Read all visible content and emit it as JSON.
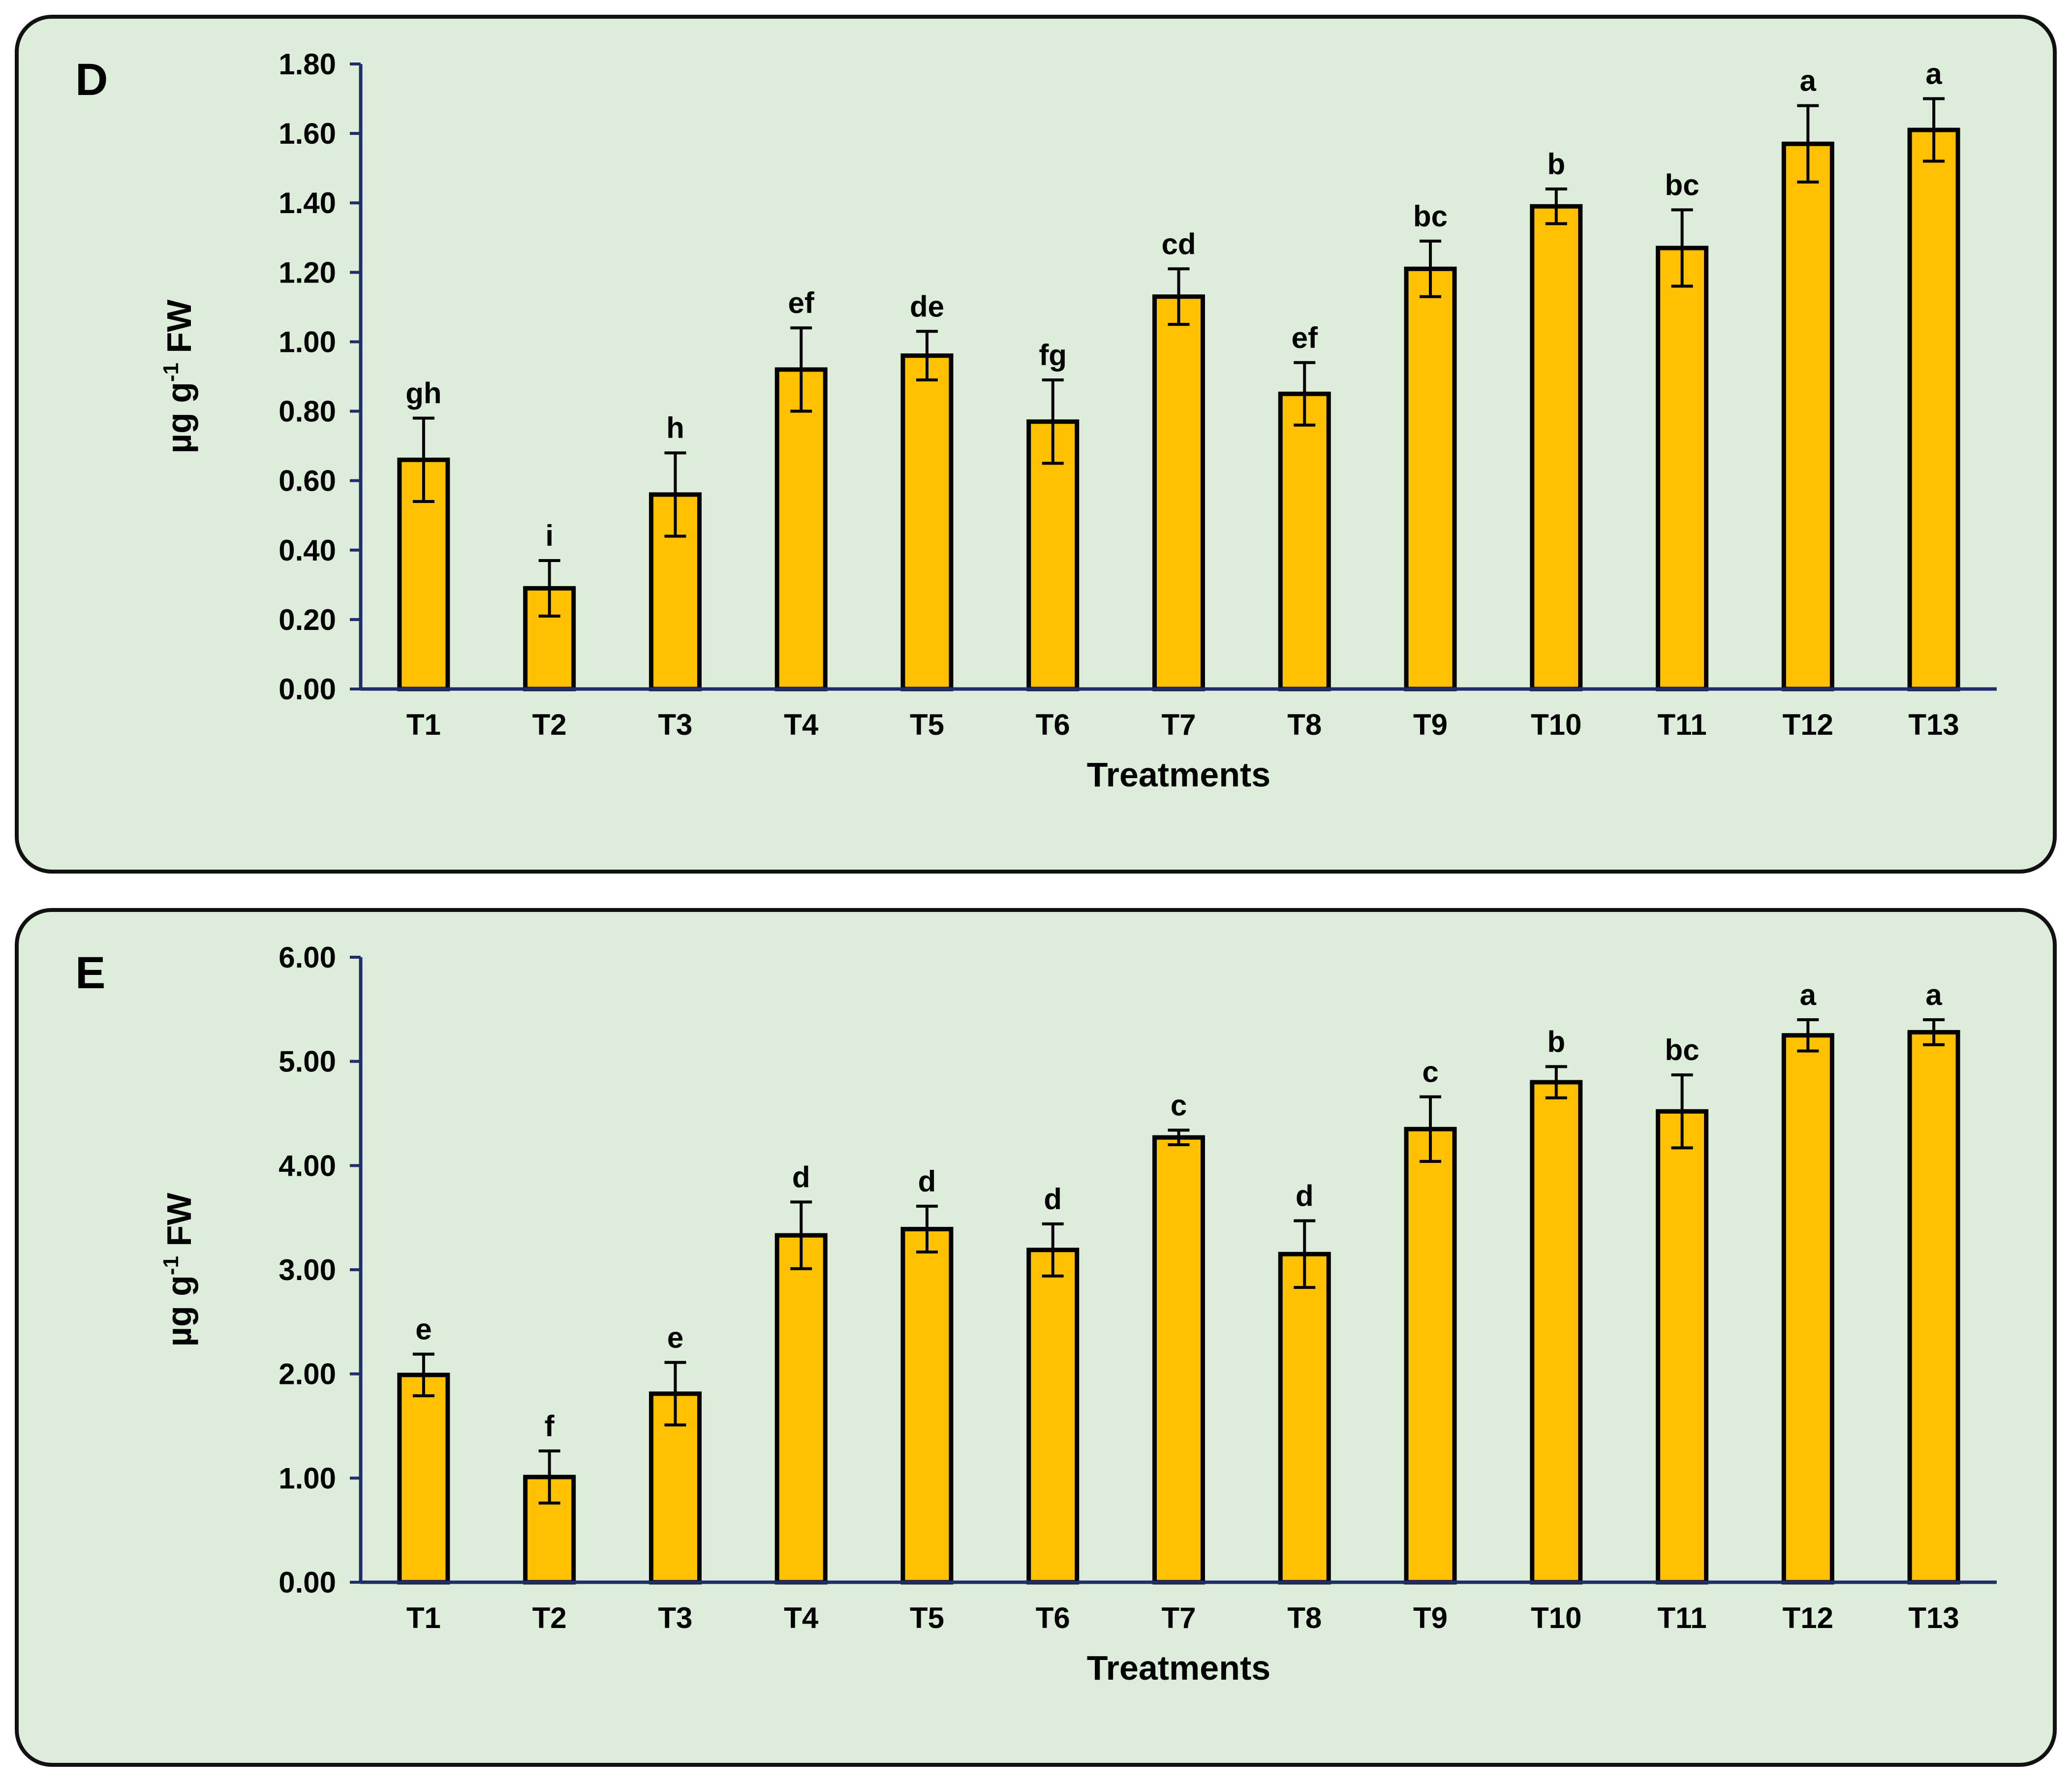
{
  "chart_data": [
    {
      "type": "bar",
      "panel_label": "D",
      "categories": [
        "T1",
        "T2",
        "T3",
        "T4",
        "T5",
        "T6",
        "T7",
        "T8",
        "T9",
        "T10",
        "T11",
        "T12",
        "T13"
      ],
      "values": [
        0.66,
        0.29,
        0.56,
        0.92,
        0.96,
        0.77,
        1.13,
        0.85,
        1.21,
        1.39,
        1.27,
        1.57,
        1.61
      ],
      "errors": [
        0.12,
        0.08,
        0.12,
        0.12,
        0.07,
        0.12,
        0.08,
        0.09,
        0.08,
        0.05,
        0.11,
        0.11,
        0.09
      ],
      "significance_letters": [
        "gh",
        "i",
        "h",
        "ef",
        "de",
        "fg",
        "cd",
        "ef",
        "bc",
        "b",
        "bc",
        "a",
        "a"
      ],
      "ylim": [
        0,
        1.8
      ],
      "yticks": [
        "0.00",
        "0.20",
        "0.40",
        "0.60",
        "0.80",
        "1.00",
        "1.20",
        "1.40",
        "1.60",
        "1.80"
      ],
      "ylabel_main": "µg g",
      "ylabel_sup": "-1",
      "ylabel_unit": " FW",
      "xlabel": "Treatments",
      "bar_color": "#ffc000",
      "axis_color": "#1f2d6b"
    },
    {
      "type": "bar",
      "panel_label": "E",
      "categories": [
        "T1",
        "T2",
        "T3",
        "T4",
        "T5",
        "T6",
        "T7",
        "T8",
        "T9",
        "T10",
        "T11",
        "T12",
        "T13"
      ],
      "values": [
        1.99,
        1.01,
        1.81,
        3.33,
        3.39,
        3.19,
        4.27,
        3.15,
        4.35,
        4.8,
        4.52,
        5.25,
        5.28
      ],
      "errors": [
        0.2,
        0.25,
        0.3,
        0.32,
        0.22,
        0.25,
        0.07,
        0.32,
        0.31,
        0.15,
        0.35,
        0.15,
        0.12
      ],
      "significance_letters": [
        "e",
        "f",
        "e",
        "d",
        "d",
        "d",
        "c",
        "d",
        "c",
        "b",
        "bc",
        "a",
        "a"
      ],
      "ylim": [
        0,
        6
      ],
      "yticks": [
        "0.00",
        "1.00",
        "2.00",
        "3.00",
        "4.00",
        "5.00",
        "6.00"
      ],
      "ylabel_main": "µg g",
      "ylabel_sup": "-1",
      "ylabel_unit": " FW",
      "xlabel": "Treatments",
      "bar_color": "#ffc000",
      "axis_color": "#1f2d6b"
    }
  ]
}
